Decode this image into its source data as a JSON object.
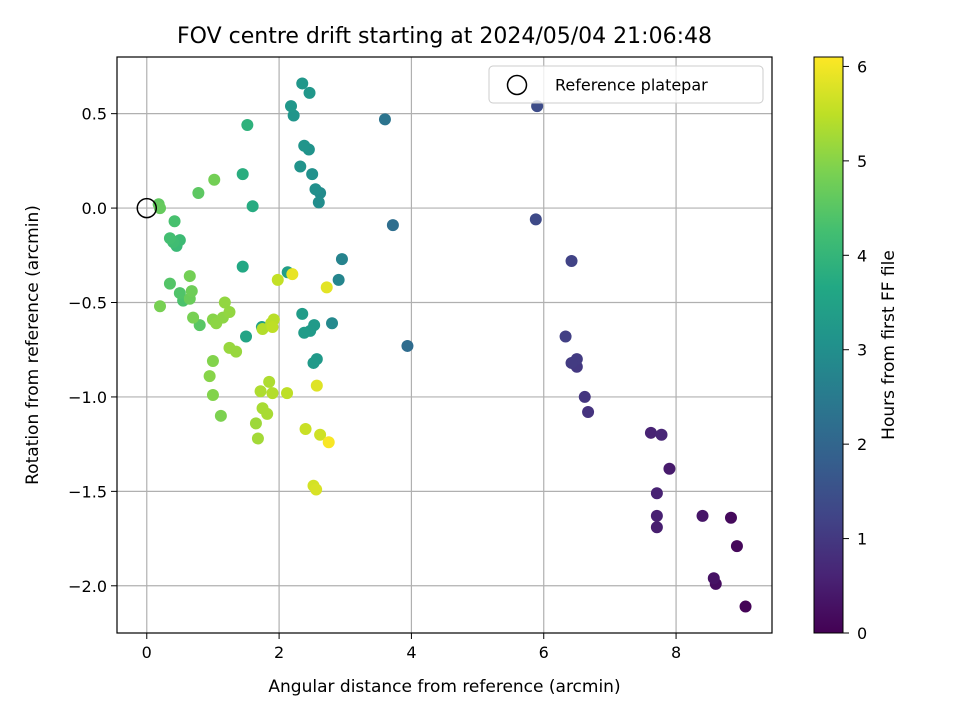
{
  "chart_data": {
    "type": "scatter",
    "title": "FOV centre drift starting at 2024/05/04 21:06:48",
    "xlabel": "Angular distance from reference (arcmin)",
    "ylabel": "Rotation from reference (arcmin)",
    "colorbar_label": "Hours from first FF file",
    "colormap": "viridis",
    "xlim": [
      -0.45,
      9.45
    ],
    "ylim": [
      -2.25,
      0.8
    ],
    "clim": [
      0,
      6.1
    ],
    "x_ticks": [
      0,
      2,
      4,
      6,
      8
    ],
    "x_tick_labels": [
      "0",
      "2",
      "4",
      "6",
      "8"
    ],
    "y_ticks": [
      0.5,
      0.0,
      -0.5,
      -1.0,
      -1.5,
      -2.0
    ],
    "y_tick_labels": [
      "0.5",
      "0.0",
      "−0.5",
      "−1.0",
      "−1.5",
      "−2.0"
    ],
    "colorbar_ticks": [
      0,
      1,
      2,
      3,
      4,
      5,
      6
    ],
    "colorbar_tick_labels": [
      "0",
      "1",
      "2",
      "3",
      "4",
      "5",
      "6"
    ],
    "grid": true,
    "legend": {
      "placement": "top-right",
      "entries": [
        "Reference platepar"
      ]
    },
    "reference_point": {
      "x": 0,
      "y": 0
    },
    "points": [
      {
        "x": 9.05,
        "y": -2.11,
        "h": 0.05
      },
      {
        "x": 8.6,
        "y": -1.99,
        "h": 0.2
      },
      {
        "x": 8.57,
        "y": -1.96,
        "h": 0.3
      },
      {
        "x": 8.92,
        "y": -1.79,
        "h": 0.12
      },
      {
        "x": 8.83,
        "y": -1.64,
        "h": 0.15
      },
      {
        "x": 8.4,
        "y": -1.63,
        "h": 0.35
      },
      {
        "x": 7.71,
        "y": -1.69,
        "h": 0.5
      },
      {
        "x": 7.71,
        "y": -1.63,
        "h": 0.55
      },
      {
        "x": 7.71,
        "y": -1.51,
        "h": 0.58
      },
      {
        "x": 7.9,
        "y": -1.38,
        "h": 0.45
      },
      {
        "x": 7.62,
        "y": -1.19,
        "h": 0.6
      },
      {
        "x": 7.78,
        "y": -1.2,
        "h": 0.65
      },
      {
        "x": 6.67,
        "y": -1.08,
        "h": 0.9
      },
      {
        "x": 6.62,
        "y": -1.0,
        "h": 0.95
      },
      {
        "x": 6.5,
        "y": -0.84,
        "h": 1.0
      },
      {
        "x": 6.5,
        "y": -0.8,
        "h": 1.05
      },
      {
        "x": 6.42,
        "y": -0.82,
        "h": 1.05
      },
      {
        "x": 6.33,
        "y": -0.68,
        "h": 1.15
      },
      {
        "x": 6.42,
        "y": -0.28,
        "h": 1.2
      },
      {
        "x": 5.88,
        "y": -0.06,
        "h": 1.35
      },
      {
        "x": 5.9,
        "y": 0.54,
        "h": 1.4
      },
      {
        "x": 3.94,
        "y": -0.73,
        "h": 2.15
      },
      {
        "x": 3.72,
        "y": -0.09,
        "h": 2.2
      },
      {
        "x": 3.6,
        "y": 0.47,
        "h": 2.35
      },
      {
        "x": 2.95,
        "y": -0.27,
        "h": 2.7
      },
      {
        "x": 2.9,
        "y": -0.38,
        "h": 2.75
      },
      {
        "x": 2.8,
        "y": -0.61,
        "h": 2.85
      },
      {
        "x": 2.62,
        "y": 0.08,
        "h": 2.9
      },
      {
        "x": 2.6,
        "y": 0.03,
        "h": 2.95
      },
      {
        "x": 2.55,
        "y": 0.1,
        "h": 3.0
      },
      {
        "x": 2.5,
        "y": 0.18,
        "h": 3.05
      },
      {
        "x": 2.32,
        "y": 0.22,
        "h": 3.1
      },
      {
        "x": 2.45,
        "y": 0.31,
        "h": 3.1
      },
      {
        "x": 2.38,
        "y": 0.33,
        "h": 3.15
      },
      {
        "x": 2.22,
        "y": 0.49,
        "h": 3.15
      },
      {
        "x": 2.18,
        "y": 0.54,
        "h": 3.2
      },
      {
        "x": 2.35,
        "y": 0.66,
        "h": 3.2
      },
      {
        "x": 2.46,
        "y": 0.61,
        "h": 3.2
      },
      {
        "x": 2.57,
        "y": -0.8,
        "h": 3.25
      },
      {
        "x": 2.52,
        "y": -0.82,
        "h": 3.3
      },
      {
        "x": 2.53,
        "y": -0.62,
        "h": 3.3
      },
      {
        "x": 2.47,
        "y": -0.65,
        "h": 3.3
      },
      {
        "x": 2.38,
        "y": -0.66,
        "h": 3.35
      },
      {
        "x": 2.35,
        "y": -0.56,
        "h": 3.35
      },
      {
        "x": 2.13,
        "y": -0.34,
        "h": 3.4
      },
      {
        "x": 1.74,
        "y": -0.63,
        "h": 3.45
      },
      {
        "x": 1.5,
        "y": -0.68,
        "h": 3.55
      },
      {
        "x": 1.45,
        "y": -0.31,
        "h": 3.65
      },
      {
        "x": 1.6,
        "y": 0.01,
        "h": 3.75
      },
      {
        "x": 1.45,
        "y": 0.18,
        "h": 3.8
      },
      {
        "x": 1.52,
        "y": 0.44,
        "h": 3.9
      },
      {
        "x": 0.45,
        "y": -0.2,
        "h": 4.1
      },
      {
        "x": 0.5,
        "y": -0.17,
        "h": 4.15
      },
      {
        "x": 0.4,
        "y": -0.18,
        "h": 4.2
      },
      {
        "x": 0.35,
        "y": -0.16,
        "h": 4.25
      },
      {
        "x": 0.42,
        "y": -0.07,
        "h": 4.3
      },
      {
        "x": 0.55,
        "y": -0.49,
        "h": 4.35
      },
      {
        "x": 0.5,
        "y": -0.45,
        "h": 4.4
      },
      {
        "x": 0.35,
        "y": -0.4,
        "h": 4.45
      },
      {
        "x": 0.8,
        "y": -0.62,
        "h": 4.5
      },
      {
        "x": 0.78,
        "y": 0.08,
        "h": 4.55
      },
      {
        "x": 0.18,
        "y": 0.02,
        "h": 4.6
      },
      {
        "x": 0.2,
        "y": 0.0,
        "h": 4.65
      },
      {
        "x": 0.65,
        "y": -0.48,
        "h": 4.7
      },
      {
        "x": 0.68,
        "y": -0.44,
        "h": 4.75
      },
      {
        "x": 0.65,
        "y": -0.36,
        "h": 4.8
      },
      {
        "x": 1.02,
        "y": 0.15,
        "h": 4.8
      },
      {
        "x": 0.2,
        "y": -0.52,
        "h": 4.85
      },
      {
        "x": 0.7,
        "y": -0.58,
        "h": 4.85
      },
      {
        "x": 1.12,
        "y": -1.1,
        "h": 4.9
      },
      {
        "x": 1.0,
        "y": -0.99,
        "h": 4.95
      },
      {
        "x": 1.0,
        "y": -0.81,
        "h": 4.95
      },
      {
        "x": 0.95,
        "y": -0.89,
        "h": 5.0
      },
      {
        "x": 1.0,
        "y": -0.59,
        "h": 5.0
      },
      {
        "x": 1.05,
        "y": -0.61,
        "h": 5.05
      },
      {
        "x": 1.15,
        "y": -0.58,
        "h": 5.05
      },
      {
        "x": 1.18,
        "y": -0.5,
        "h": 5.1
      },
      {
        "x": 1.25,
        "y": -0.55,
        "h": 5.1
      },
      {
        "x": 1.25,
        "y": -0.74,
        "h": 5.15
      },
      {
        "x": 1.35,
        "y": -0.76,
        "h": 5.15
      },
      {
        "x": 1.65,
        "y": -1.14,
        "h": 5.2
      },
      {
        "x": 1.68,
        "y": -1.22,
        "h": 5.25
      },
      {
        "x": 1.75,
        "y": -1.06,
        "h": 5.3
      },
      {
        "x": 1.82,
        "y": -1.09,
        "h": 5.3
      },
      {
        "x": 1.72,
        "y": -0.97,
        "h": 5.35
      },
      {
        "x": 1.85,
        "y": -0.92,
        "h": 5.35
      },
      {
        "x": 1.9,
        "y": -0.98,
        "h": 5.4
      },
      {
        "x": 1.75,
        "y": -0.64,
        "h": 5.4
      },
      {
        "x": 1.88,
        "y": -0.61,
        "h": 5.45
      },
      {
        "x": 1.92,
        "y": -0.59,
        "h": 5.45
      },
      {
        "x": 1.9,
        "y": -0.63,
        "h": 5.5
      },
      {
        "x": 2.12,
        "y": -0.98,
        "h": 5.5
      },
      {
        "x": 1.98,
        "y": -0.38,
        "h": 5.55
      },
      {
        "x": 2.4,
        "y": -1.17,
        "h": 5.6
      },
      {
        "x": 2.62,
        "y": -1.2,
        "h": 5.65
      },
      {
        "x": 2.52,
        "y": -1.47,
        "h": 5.7
      },
      {
        "x": 2.56,
        "y": -1.49,
        "h": 5.75
      },
      {
        "x": 2.57,
        "y": -0.94,
        "h": 5.8
      },
      {
        "x": 2.72,
        "y": -0.42,
        "h": 5.85
      },
      {
        "x": 2.2,
        "y": -0.35,
        "h": 5.9
      },
      {
        "x": 2.75,
        "y": -1.24,
        "h": 6.05
      }
    ]
  }
}
